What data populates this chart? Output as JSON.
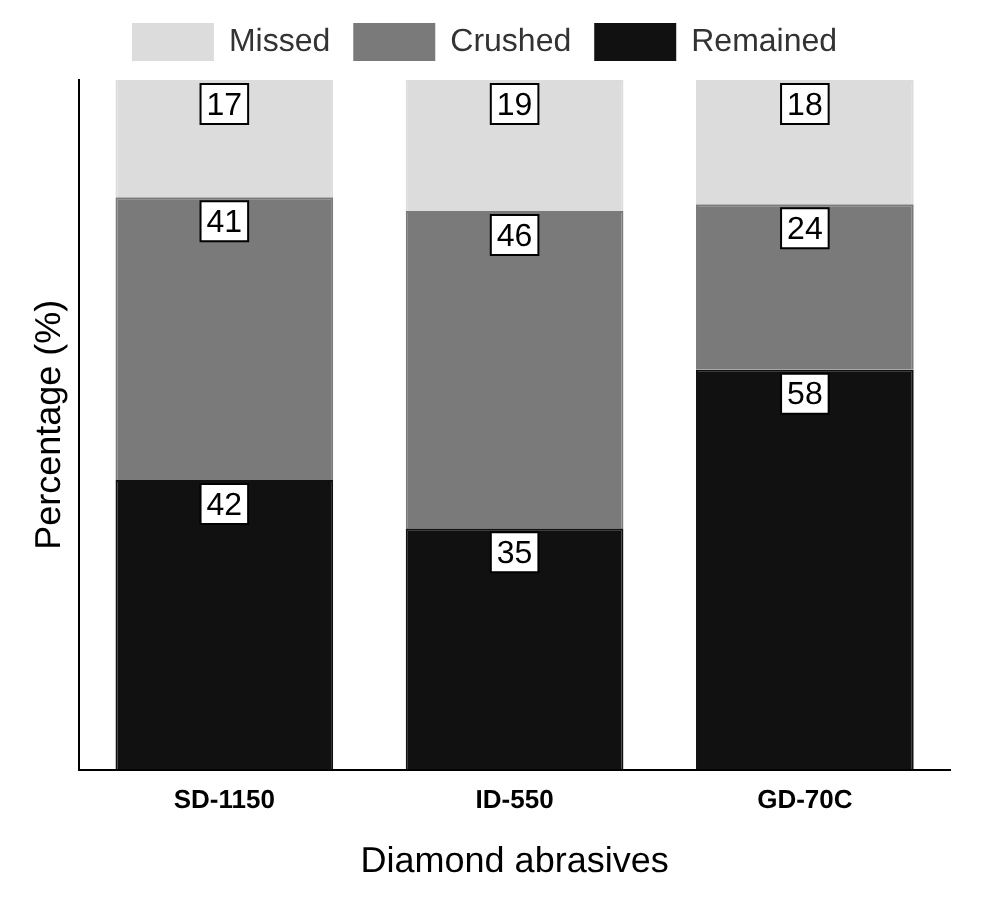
{
  "chart_data": {
    "type": "bar",
    "stacked": true,
    "xlabel": "Diamond abrasives",
    "ylabel": "Percentage (%)",
    "categories": [
      "SD-1150",
      "ID-550",
      "GD-70C"
    ],
    "series": [
      {
        "name": "Remained",
        "color": "#111111",
        "values": [
          42,
          35,
          58
        ]
      },
      {
        "name": "Crushed",
        "color": "#7a7a7a",
        "values": [
          41,
          46,
          24
        ]
      },
      {
        "name": "Missed",
        "color": "#dcdcdc",
        "values": [
          17,
          19,
          18
        ]
      }
    ],
    "ylim": [
      0,
      100
    ],
    "tick_labels": "x",
    "data_labels": true,
    "legend": "top",
    "grid": false
  }
}
